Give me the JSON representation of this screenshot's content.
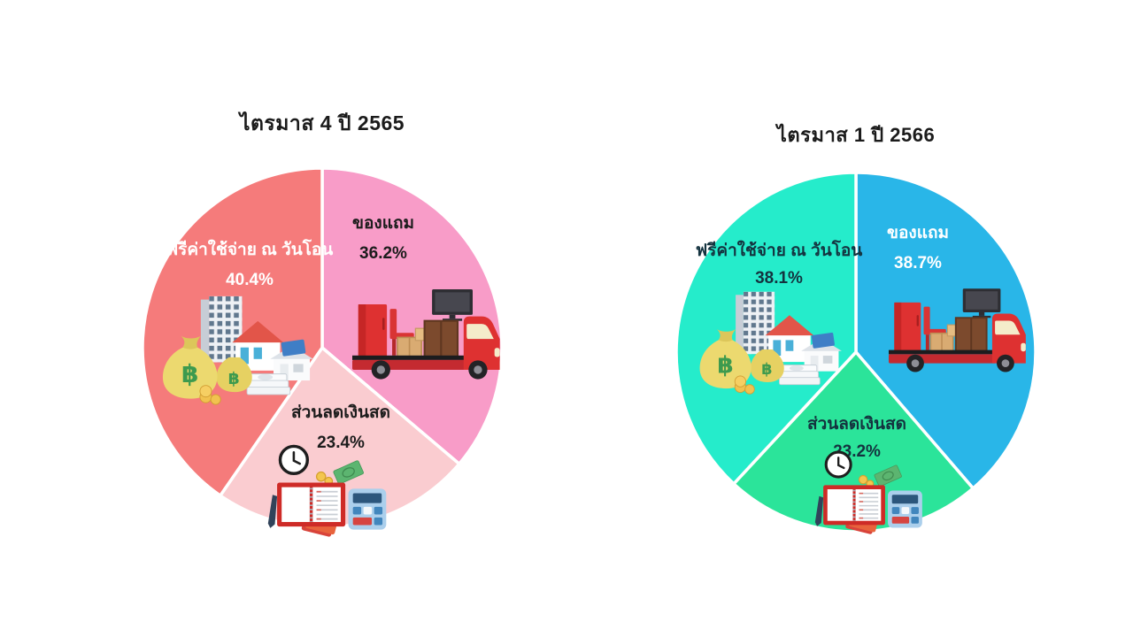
{
  "page": {
    "background_color": "#ffffff"
  },
  "icons": {
    "baht_symbol": "฿"
  },
  "chart_data": [
    {
      "type": "pie",
      "title": "ไตรมาส 4 ปี 2565",
      "legend_position": "none",
      "labels_inside": true,
      "start_angle_deg": 0,
      "direction": "clockwise",
      "unit": "%",
      "slices": [
        {
          "label": "ของแถม",
          "value": 36.2,
          "pct_label": "36.2%",
          "color": "#F89CC8",
          "text_color": "#1c1c1c",
          "icon": "delivery-truck-icon"
        },
        {
          "label": "ส่วนลดเงินสด",
          "value": 23.4,
          "pct_label": "23.4%",
          "color": "#FACCD0",
          "text_color": "#1c1c1c",
          "icon": "clock-notebook-calculator-icon"
        },
        {
          "label": "ฟรีค่าใช้จ่าย ณ วันโอน",
          "value": 40.4,
          "pct_label": "40.4%",
          "color": "#F57B7B",
          "text_color": "#ffffff",
          "icon": "money-bags-real-estate-icon"
        }
      ]
    },
    {
      "type": "pie",
      "title": "ไตรมาส 1 ปี 2566",
      "legend_position": "none",
      "labels_inside": true,
      "start_angle_deg": 0,
      "direction": "clockwise",
      "unit": "%",
      "slices": [
        {
          "label": "ของแถม",
          "value": 38.7,
          "pct_label": "38.7%",
          "color": "#29B6E8",
          "text_color": "#ffffff",
          "icon": "delivery-truck-icon"
        },
        {
          "label": "ส่วนลดเงินสด",
          "value": 23.2,
          "pct_label": "23.2%",
          "color": "#2BE49A",
          "text_color": "#14333f",
          "icon": "clock-notebook-calculator-icon"
        },
        {
          "label": "ฟรีค่าใช้จ่าย ณ วันโอน",
          "value": 38.1,
          "pct_label": "38.1%",
          "color": "#25ECCB",
          "text_color": "#14333f",
          "icon": "money-bags-real-estate-icon"
        }
      ]
    }
  ]
}
